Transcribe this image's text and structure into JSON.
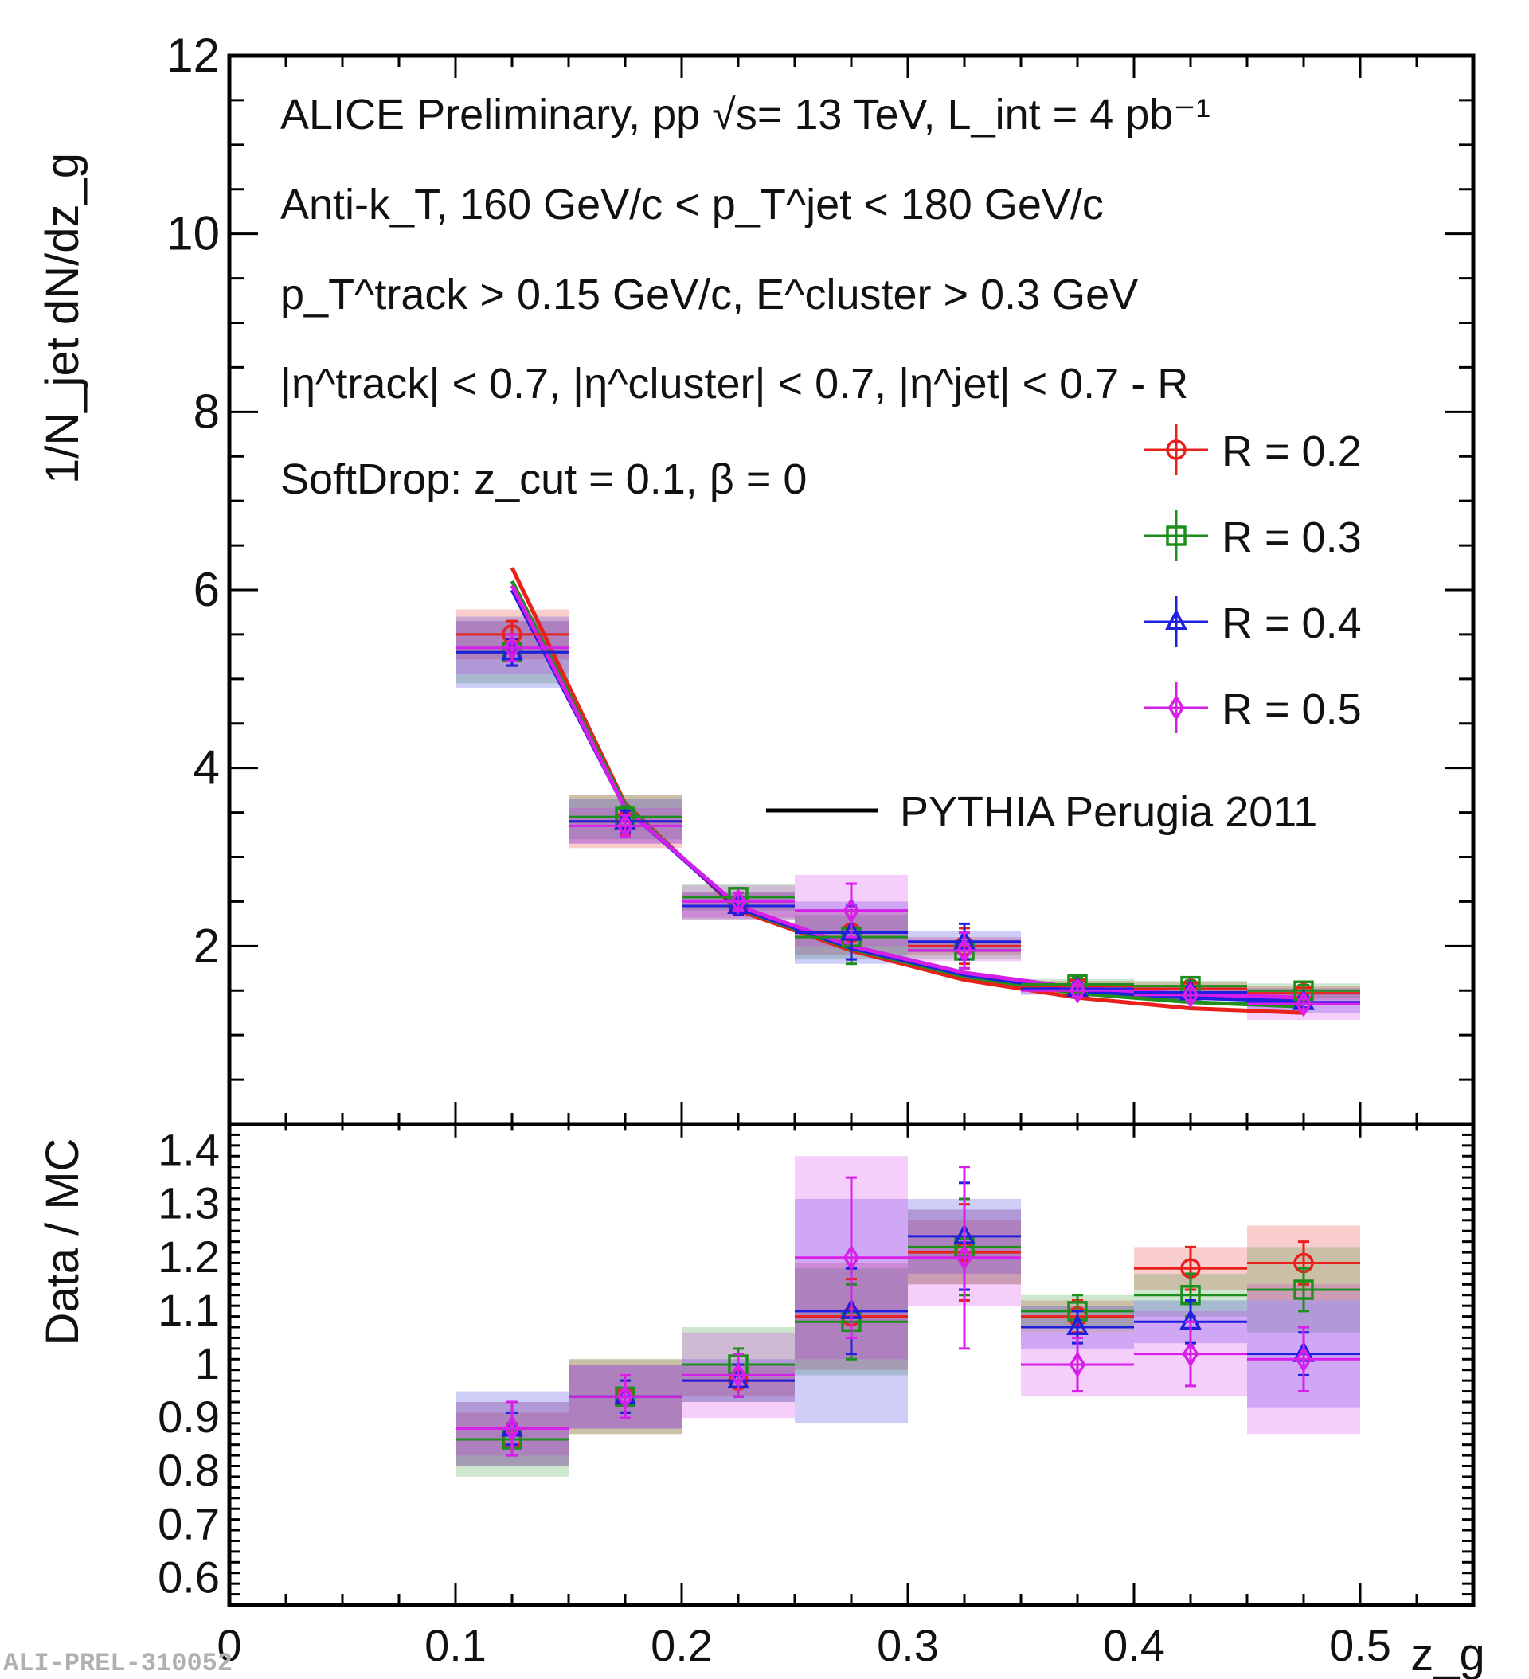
{
  "chart_data": {
    "type": "scatter",
    "top_panel": {
      "ylabel": "1/N_jet dN/dz_g",
      "ylim": [
        0,
        12
      ],
      "yticks": [
        "2",
        "4",
        "6",
        "8",
        "10",
        "12"
      ],
      "annotations": {
        "line1": "ALICE Preliminary, pp √s= 13 TeV, L_int = 4 pb⁻¹",
        "line2": "Anti-k_T, 160 GeV/c < p_T^jet < 180 GeV/c",
        "line3": "p_T^track > 0.15 GeV/c, E^cluster > 0.3 GeV",
        "line4": "|η^track| < 0.7, |η^cluster| < 0.7, |η^jet| < 0.7 - R",
        "line5": "SoftDrop: z_cut = 0.1, β = 0"
      },
      "legend": [
        "R = 0.2",
        "R = 0.3",
        "R = 0.4",
        "R = 0.5",
        "PYTHIA Perugia 2011"
      ],
      "x_bins": [
        [
          0.1,
          0.15
        ],
        [
          0.15,
          0.2
        ],
        [
          0.2,
          0.25
        ],
        [
          0.25,
          0.3
        ],
        [
          0.3,
          0.35
        ],
        [
          0.35,
          0.4
        ],
        [
          0.4,
          0.45
        ],
        [
          0.45,
          0.5
        ]
      ],
      "series": [
        {
          "name": "R = 0.2",
          "color": "#e8211c",
          "marker": "circle",
          "values": [
            5.5,
            3.4,
            2.45,
            2.15,
            2.0,
            1.55,
            1.52,
            1.47
          ],
          "stat_err": [
            0.15,
            0.15,
            0.1,
            0.3,
            0.2,
            0.07,
            0.06,
            0.06
          ],
          "syst": [
            0.28,
            0.3,
            0.15,
            0.25,
            0.1,
            0.06,
            0.07,
            0.08
          ],
          "pythia": [
            6.25,
            3.6,
            2.4,
            1.95,
            1.62,
            1.42,
            1.3,
            1.25
          ]
        },
        {
          "name": "R = 0.3",
          "color": "#1e8f1e",
          "marker": "square",
          "values": [
            5.3,
            3.45,
            2.55,
            2.1,
            1.95,
            1.57,
            1.55,
            1.5
          ],
          "stat_err": [
            0.15,
            0.12,
            0.1,
            0.3,
            0.2,
            0.07,
            0.06,
            0.06
          ],
          "syst": [
            0.35,
            0.25,
            0.15,
            0.25,
            0.1,
            0.06,
            0.06,
            0.08
          ],
          "pythia": [
            6.1,
            3.58,
            2.42,
            1.97,
            1.66,
            1.47,
            1.37,
            1.32
          ]
        },
        {
          "name": "R = 0.4",
          "color": "#1f1fe0",
          "marker": "triangle",
          "values": [
            5.3,
            3.4,
            2.45,
            2.15,
            2.05,
            1.52,
            1.48,
            1.37
          ],
          "stat_err": [
            0.15,
            0.12,
            0.1,
            0.3,
            0.2,
            0.07,
            0.06,
            0.06
          ],
          "syst": [
            0.4,
            0.25,
            0.15,
            0.35,
            0.12,
            0.06,
            0.07,
            0.12
          ],
          "pythia": [
            6.0,
            3.55,
            2.43,
            1.98,
            1.68,
            1.5,
            1.42,
            1.38
          ]
        },
        {
          "name": "R = 0.5",
          "color": "#d61fe8",
          "marker": "diamond",
          "values": [
            5.35,
            3.35,
            2.5,
            2.4,
            1.95,
            1.5,
            1.45,
            1.35
          ],
          "stat_err": [
            0.15,
            0.12,
            0.1,
            0.3,
            0.2,
            0.07,
            0.06,
            0.06
          ],
          "syst": [
            0.3,
            0.2,
            0.18,
            0.4,
            0.12,
            0.05,
            0.06,
            0.18
          ],
          "pythia": [
            6.05,
            3.55,
            2.45,
            2.0,
            1.7,
            1.53,
            1.46,
            1.42
          ]
        }
      ]
    },
    "bottom_panel": {
      "ylabel": "Data / MC",
      "ylim": [
        0.55,
        1.45
      ],
      "yticks": [
        "0.6",
        "0.7",
        "0.8",
        "0.9",
        "1",
        "1.1",
        "1.2",
        "1.3",
        "1.4"
      ],
      "xlabel": "z_g",
      "xlim": [
        0,
        0.55
      ],
      "xticks": [
        "0",
        "0.1",
        "0.2",
        "0.3",
        "0.4",
        "0.5"
      ],
      "series": [
        {
          "name": "R = 0.2",
          "values": [
            0.86,
            0.94,
            0.97,
            1.09,
            1.21,
            1.09,
            1.18,
            1.19
          ],
          "stat_err": [
            0.03,
            0.03,
            0.03,
            0.07,
            0.09,
            0.03,
            0.04,
            0.04
          ],
          "syst": [
            0.05,
            0.07,
            0.03,
            0.1,
            0.06,
            0.03,
            0.04,
            0.07
          ]
        },
        {
          "name": "R = 0.3",
          "values": [
            0.86,
            0.94,
            1.0,
            1.08,
            1.22,
            1.1,
            1.13,
            1.14
          ],
          "stat_err": [
            0.03,
            0.03,
            0.03,
            0.07,
            0.09,
            0.03,
            0.04,
            0.04
          ],
          "syst": [
            0.07,
            0.07,
            0.07,
            0.1,
            0.07,
            0.03,
            0.04,
            0.08
          ]
        },
        {
          "name": "R = 0.4",
          "values": [
            0.88,
            0.94,
            0.97,
            1.1,
            1.24,
            1.07,
            1.08,
            1.02
          ],
          "stat_err": [
            0.03,
            0.03,
            0.03,
            0.08,
            0.1,
            0.03,
            0.04,
            0.04
          ],
          "syst": [
            0.07,
            0.06,
            0.04,
            0.21,
            0.07,
            0.04,
            0.04,
            0.1
          ]
        },
        {
          "name": "R = 0.5",
          "values": [
            0.88,
            0.94,
            0.98,
            1.2,
            1.2,
            1.0,
            1.02,
            1.01
          ],
          "stat_err": [
            0.05,
            0.04,
            0.04,
            0.15,
            0.17,
            0.05,
            0.06,
            0.06
          ],
          "syst": [
            0.05,
            0.06,
            0.08,
            0.19,
            0.09,
            0.06,
            0.08,
            0.14
          ]
        }
      ]
    },
    "watermark": "ALI-PREL-310052"
  }
}
